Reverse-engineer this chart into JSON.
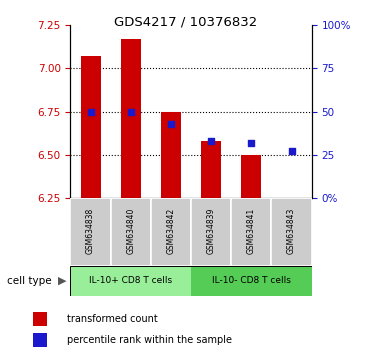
{
  "title": "GDS4217 / 10376832",
  "samples": [
    "GSM634838",
    "GSM634840",
    "GSM634842",
    "GSM634839",
    "GSM634841",
    "GSM634843"
  ],
  "group1_label": "IL-10+ CD8 T cells",
  "group2_label": "IL-10- CD8 T cells",
  "cell_type_label": "cell type",
  "transformed_counts": [
    7.07,
    7.17,
    6.75,
    6.58,
    6.5,
    6.25
  ],
  "percentile_ranks": [
    50.0,
    50.0,
    43.0,
    33.0,
    32.0,
    27.0
  ],
  "ylim_left": [
    6.25,
    7.25
  ],
  "ylim_right": [
    0,
    100
  ],
  "yticks_left": [
    6.25,
    6.5,
    6.75,
    7.0,
    7.25
  ],
  "yticks_right": [
    0,
    25,
    50,
    75,
    100
  ],
  "ytick_labels_right": [
    "0%",
    "25",
    "50",
    "75",
    "100%"
  ],
  "bar_color": "#cc0000",
  "dot_color": "#1a1acc",
  "bar_bottom": 6.25,
  "sample_bg": "#cccccc",
  "group1_color": "#99ee99",
  "group2_color": "#55cc55",
  "legend_items": [
    "transformed count",
    "percentile rank within the sample"
  ],
  "legend_colors": [
    "#cc0000",
    "#1a1acc"
  ],
  "grid_yticks": [
    6.5,
    6.75,
    7.0
  ]
}
